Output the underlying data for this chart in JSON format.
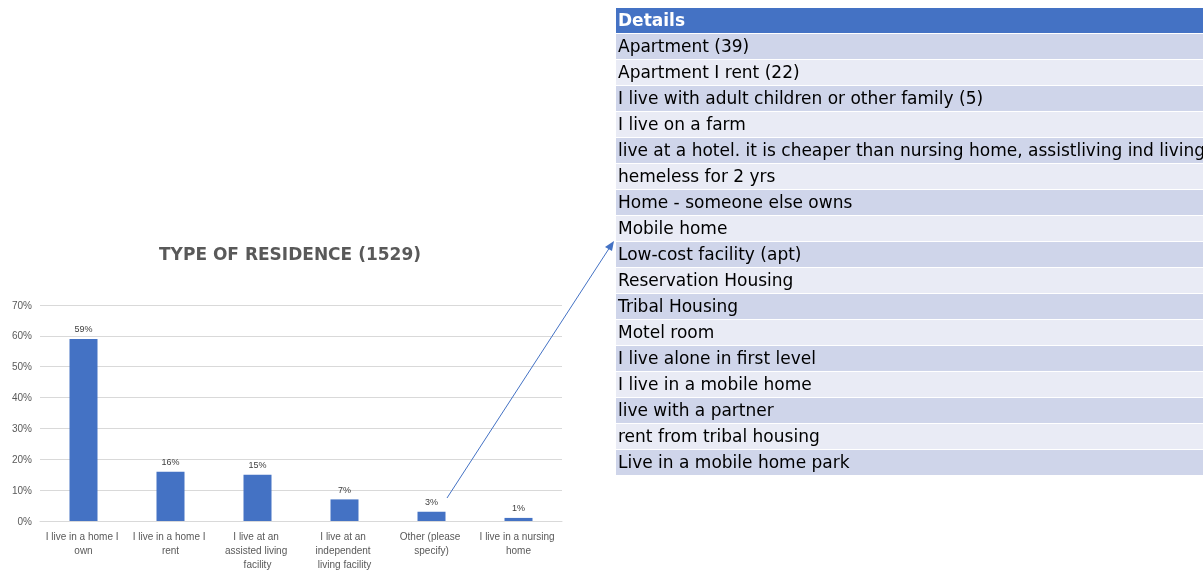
{
  "chart_data": [
    {
      "type": "bar",
      "title": "TYPE OF RESIDENCE (1529)",
      "categories": [
        "I live in a home I own",
        "I live in a home I rent",
        "I live at an assisted living facility",
        "I live at an independent living facility",
        "Other (please specify)",
        "I live in a nursing home"
      ],
      "values": [
        59,
        16,
        15,
        7,
        3,
        1
      ],
      "value_labels": [
        "59%",
        "16%",
        "15%",
        "7%",
        "3%",
        "1%"
      ],
      "color": "#4472c4",
      "ylim": [
        0,
        70
      ],
      "yticks": [
        {
          "value": 0,
          "label": "0%"
        },
        {
          "value": 10,
          "label": "10%"
        },
        {
          "value": 20,
          "label": "20%"
        },
        {
          "value": 30,
          "label": "30%"
        },
        {
          "value": 40,
          "label": "40%"
        },
        {
          "value": 50,
          "label": "50%"
        },
        {
          "value": 60,
          "label": "60%"
        },
        {
          "value": 70,
          "label": "70%"
        }
      ],
      "grid": "y"
    },
    {
      "type": "other",
      "title": "Details",
      "annotations": [
        "Apartment (39)",
        "Apartment I rent (22)",
        "I live with adult children or other family (5)",
        "I live on a farm",
        "live at a hotel. it is cheaper than nursing home, assistliving  ind living",
        "hemeless for 2 yrs",
        "Home - someone else owns",
        "Mobile home",
        "Low-cost facility (apt)",
        "Reservation Housing",
        "Tribal Housing",
        "Motel room",
        "I live alone in first level",
        "I live in a mobile home",
        "live with a partner",
        "rent from tribal housing",
        "Live in a mobile home park"
      ]
    }
  ]
}
